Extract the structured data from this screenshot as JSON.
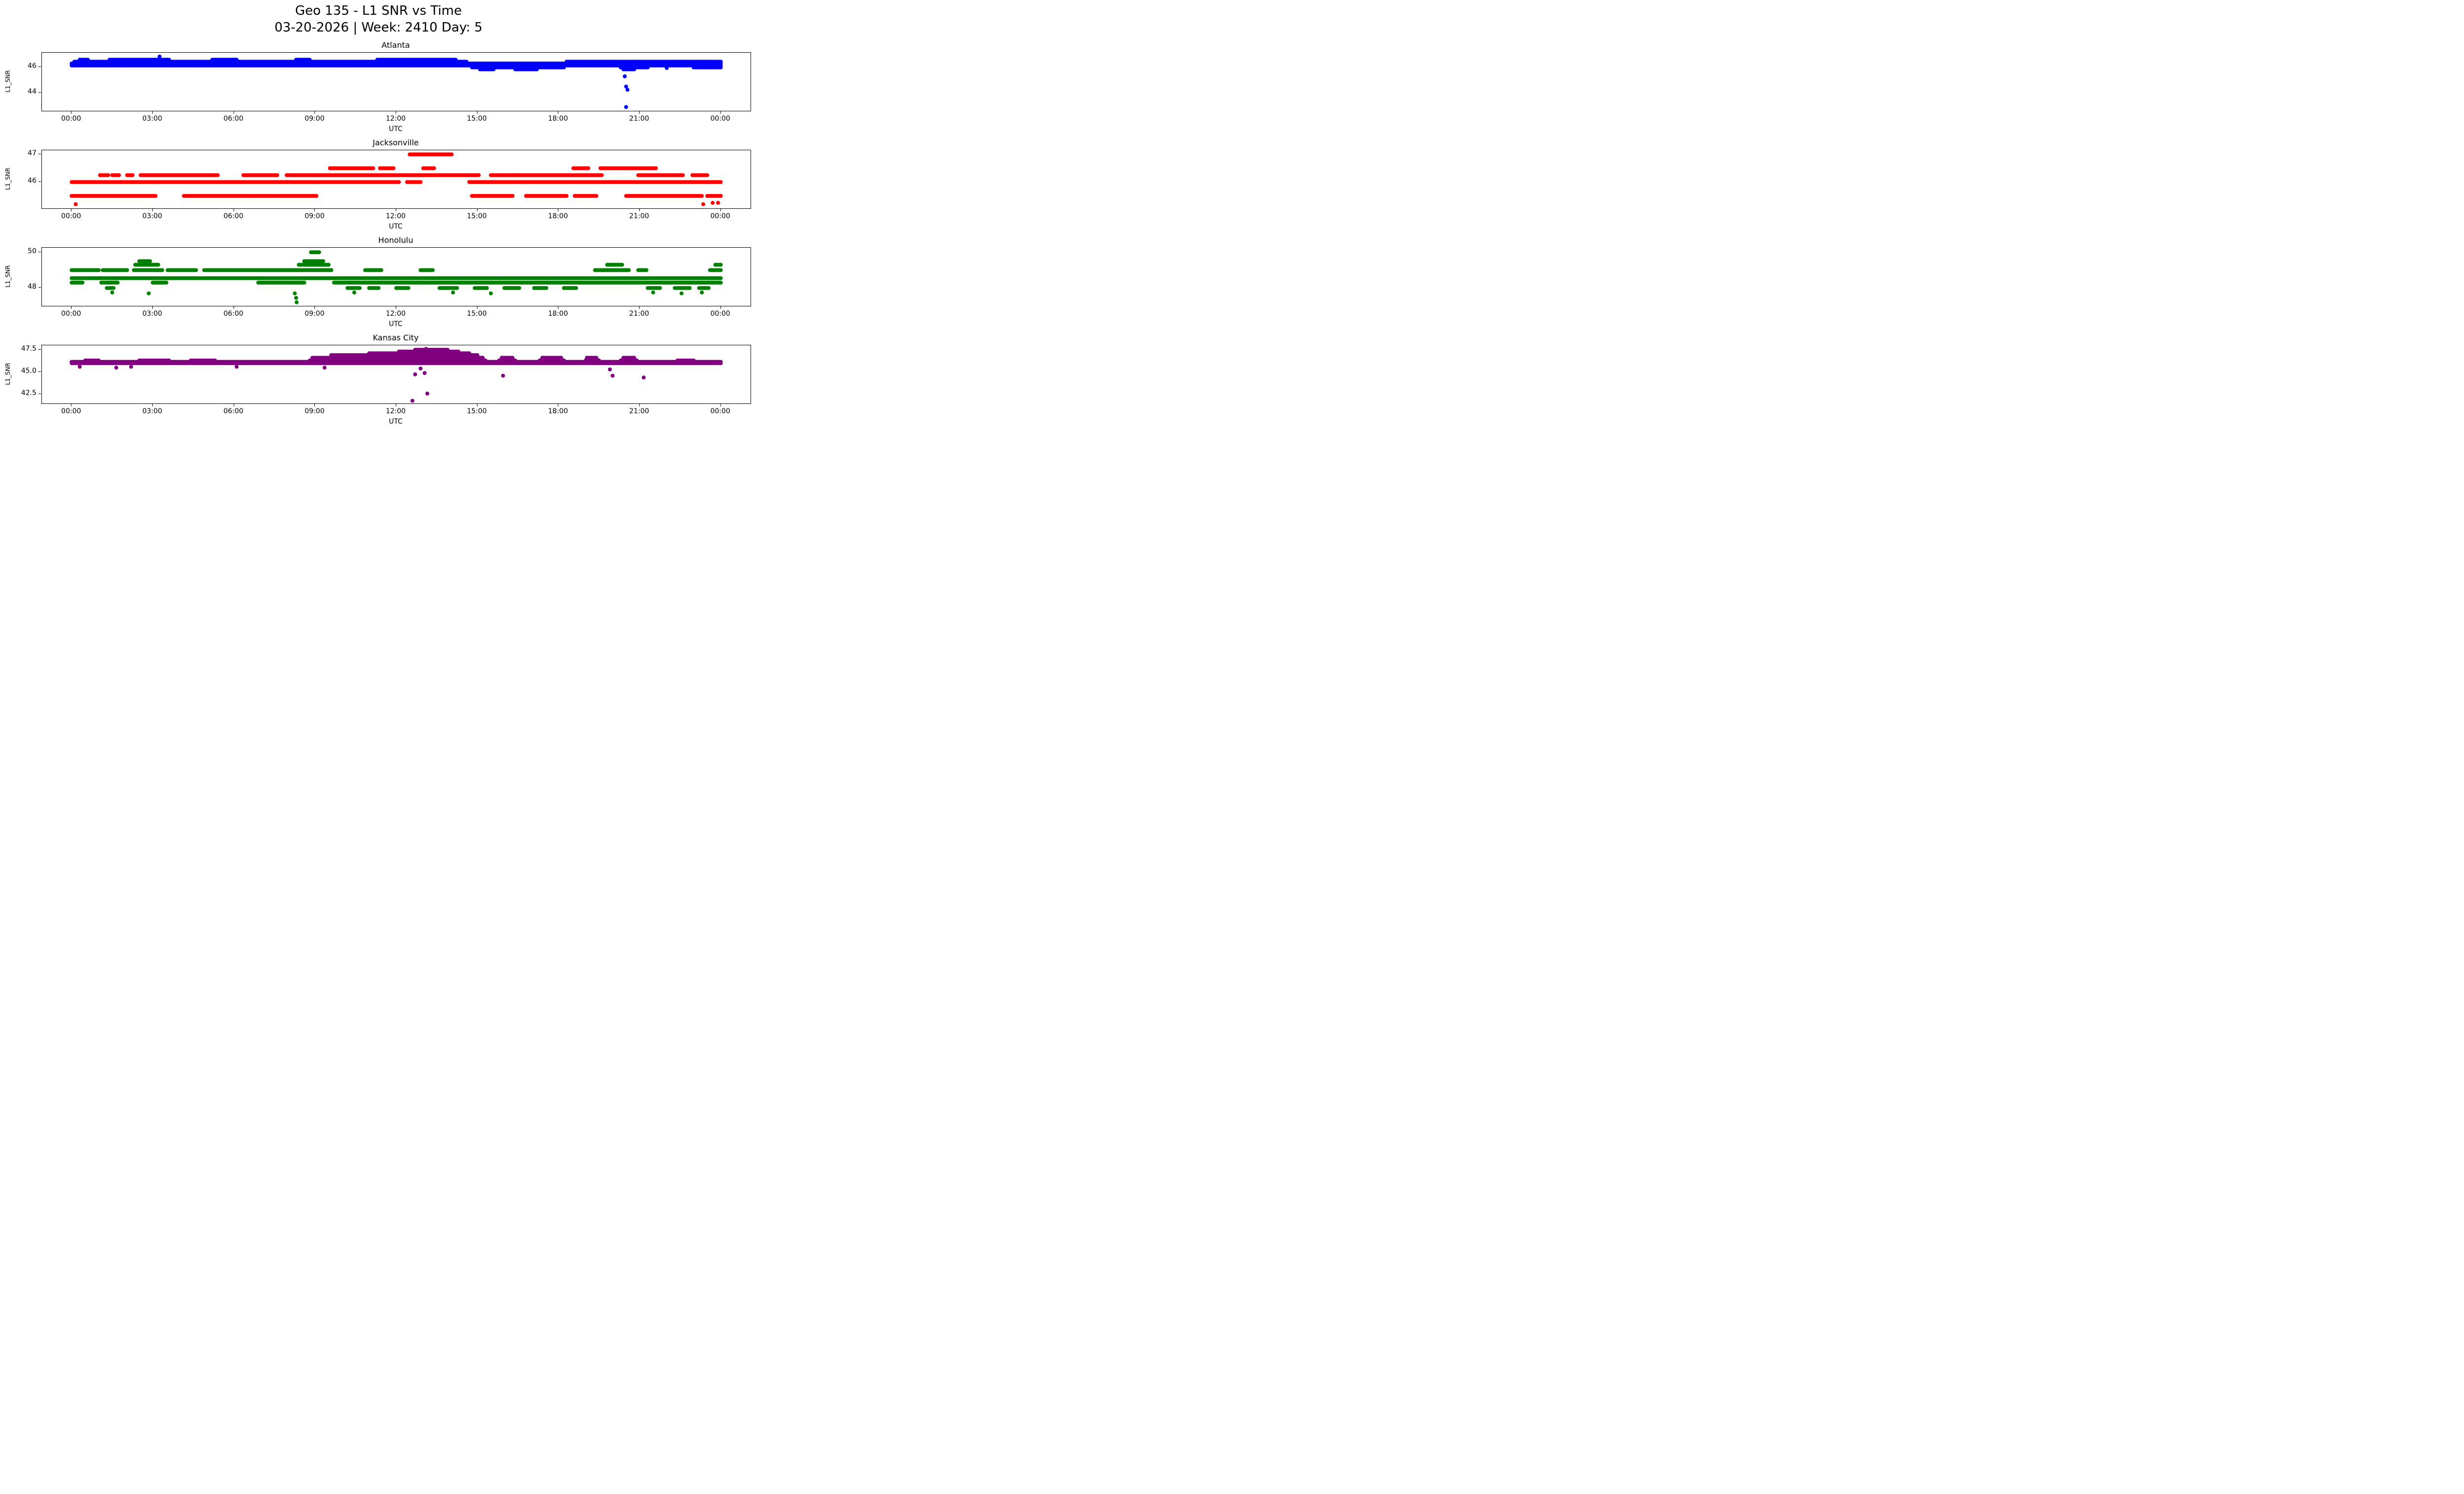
{
  "figure": {
    "title_line1": "Geo 135 - L1 SNR vs Time",
    "title_line2": "03-20-2026 | Week: 2410 Day: 5"
  },
  "chart_data": [
    {
      "type": "scatter",
      "title": "Atlanta",
      "color": "#0000ff",
      "xlabel": "UTC",
      "ylabel": "L1_SNR",
      "xlim": [
        -1.1,
        25.1
      ],
      "ylim": [
        42.6,
        47.15
      ],
      "xticks": [
        0,
        3,
        6,
        9,
        12,
        15,
        18,
        21,
        24
      ],
      "xtick_labels": [
        "00:00",
        "03:00",
        "06:00",
        "09:00",
        "12:00",
        "15:00",
        "18:00",
        "21:00",
        "00:00"
      ],
      "yticks": [
        44,
        46
      ],
      "ytick_labels": [
        "44",
        "46"
      ],
      "sample_step_hours": 0.05,
      "marker_radius": 4,
      "bands": [
        {
          "y": 46.15,
          "intervals": [
            [
              0,
              24
            ]
          ]
        },
        {
          "y": 46.3,
          "intervals": [
            [
              0,
              24
            ]
          ]
        },
        {
          "y": 46.45,
          "intervals": [
            [
              0.1,
              14.6
            ],
            [
              18.3,
              24
            ]
          ]
        },
        {
          "y": 46.6,
          "intervals": [
            [
              0.3,
              0.6
            ],
            [
              1.4,
              3.6
            ],
            [
              5.2,
              6.1
            ],
            [
              8.3,
              8.8
            ],
            [
              11.3,
              14.2
            ]
          ]
        },
        {
          "y": 46.0,
          "intervals": [
            [
              14.8,
              18.2
            ],
            [
              20.3,
              21.3
            ],
            [
              23.0,
              24
            ]
          ]
        },
        {
          "y": 45.85,
          "intervals": [
            [
              15.1,
              15.6
            ],
            [
              16.4,
              17.2
            ],
            [
              20.4,
              20.8
            ]
          ]
        }
      ],
      "outliers": [
        [
          3.25,
          46.85
        ],
        [
          20.45,
          45.3
        ],
        [
          20.5,
          44.5
        ],
        [
          20.55,
          44.25
        ],
        [
          20.5,
          42.9
        ],
        [
          22.0,
          45.95
        ],
        [
          23.5,
          46.0
        ]
      ]
    },
    {
      "type": "scatter",
      "title": "Jacksonville",
      "color": "#ff0000",
      "xlabel": "UTC",
      "ylabel": "L1_SNR",
      "xlim": [
        -1.1,
        25.1
      ],
      "ylim": [
        45.05,
        47.15
      ],
      "xticks": [
        0,
        3,
        6,
        9,
        12,
        15,
        18,
        21,
        24
      ],
      "xtick_labels": [
        "00:00",
        "03:00",
        "06:00",
        "09:00",
        "12:00",
        "15:00",
        "18:00",
        "21:00",
        "00:00"
      ],
      "yticks": [
        46,
        47
      ],
      "ytick_labels": [
        "46",
        "47"
      ],
      "sample_step_hours": 0.05,
      "marker_radius": 4,
      "bands": [
        {
          "y": 46.0,
          "intervals": [
            [
              0,
              12.1
            ],
            [
              12.4,
              12.9
            ],
            [
              14.7,
              24
            ]
          ]
        },
        {
          "y": 45.5,
          "intervals": [
            [
              0,
              3.1
            ],
            [
              4.15,
              9.05
            ],
            [
              14.8,
              16.3
            ],
            [
              16.8,
              18.3
            ],
            [
              18.6,
              19.4
            ],
            [
              20.5,
              23.3
            ],
            [
              23.5,
              24
            ]
          ]
        },
        {
          "y": 46.25,
          "intervals": [
            [
              1.05,
              1.35
            ],
            [
              1.5,
              1.75
            ],
            [
              2.05,
              2.25
            ],
            [
              2.55,
              5.4
            ],
            [
              6.35,
              7.6
            ],
            [
              7.95,
              15.05
            ],
            [
              15.5,
              19.6
            ],
            [
              20.95,
              22.6
            ],
            [
              22.95,
              23.5
            ]
          ]
        },
        {
          "y": 46.5,
          "intervals": [
            [
              9.55,
              11.15
            ],
            [
              11.4,
              11.9
            ],
            [
              13.0,
              13.4
            ],
            [
              18.55,
              19.1
            ],
            [
              19.55,
              21.6
            ]
          ]
        },
        {
          "y": 47.0,
          "intervals": [
            [
              12.5,
              14.05
            ]
          ]
        }
      ],
      "outliers": [
        [
          0.15,
          45.2
        ],
        [
          23.35,
          45.2
        ],
        [
          23.7,
          45.25
        ],
        [
          23.9,
          45.25
        ],
        [
          16.5,
          46.25
        ]
      ]
    },
    {
      "type": "scatter",
      "title": "Honolulu",
      "color": "#008000",
      "xlabel": "UTC",
      "ylabel": "L1_SNR",
      "xlim": [
        -1.1,
        25.1
      ],
      "ylim": [
        47.0,
        50.25
      ],
      "xticks": [
        0,
        3,
        6,
        9,
        12,
        15,
        18,
        21,
        24
      ],
      "xtick_labels": [
        "00:00",
        "03:00",
        "06:00",
        "09:00",
        "12:00",
        "15:00",
        "18:00",
        "21:00",
        "00:00"
      ],
      "yticks": [
        48,
        50
      ],
      "ytick_labels": [
        "48",
        "50"
      ],
      "sample_step_hours": 0.05,
      "marker_radius": 4,
      "bands": [
        {
          "y": 48.55,
          "intervals": [
            [
              0,
              24
            ]
          ]
        },
        {
          "y": 48.3,
          "intervals": [
            [
              0,
              0.4
            ],
            [
              1.1,
              1.7
            ],
            [
              3.0,
              3.5
            ],
            [
              6.9,
              8.6
            ],
            [
              9.7,
              24
            ]
          ]
        },
        {
          "y": 49.0,
          "intervals": [
            [
              0,
              1.0
            ],
            [
              1.15,
              2.05
            ],
            [
              2.3,
              3.35
            ],
            [
              3.55,
              4.6
            ],
            [
              4.9,
              9.6
            ],
            [
              10.85,
              11.45
            ],
            [
              12.9,
              13.35
            ],
            [
              19.35,
              20.6
            ],
            [
              20.95,
              21.25
            ],
            [
              23.6,
              24
            ]
          ]
        },
        {
          "y": 49.3,
          "intervals": [
            [
              2.35,
              3.2
            ],
            [
              8.4,
              9.5
            ],
            [
              19.8,
              20.35
            ],
            [
              23.8,
              24
            ]
          ]
        },
        {
          "y": 49.5,
          "intervals": [
            [
              2.5,
              2.9
            ],
            [
              8.6,
              9.3
            ]
          ]
        },
        {
          "y": 50.0,
          "intervals": [
            [
              8.85,
              9.15
            ]
          ]
        },
        {
          "y": 48.0,
          "intervals": [
            [
              1.3,
              1.55
            ],
            [
              10.2,
              10.65
            ],
            [
              11.0,
              11.35
            ],
            [
              12.0,
              12.45
            ],
            [
              13.6,
              14.25
            ],
            [
              14.9,
              15.35
            ],
            [
              16.0,
              16.55
            ],
            [
              17.1,
              17.55
            ],
            [
              18.2,
              18.65
            ],
            [
              21.3,
              21.75
            ],
            [
              22.3,
              22.85
            ],
            [
              23.2,
              23.55
            ]
          ]
        }
      ],
      "outliers": [
        [
          1.5,
          47.75
        ],
        [
          2.85,
          47.7
        ],
        [
          8.25,
          47.7
        ],
        [
          8.3,
          47.45
        ],
        [
          8.32,
          47.2
        ],
        [
          10.45,
          47.75
        ],
        [
          14.1,
          47.75
        ],
        [
          15.5,
          47.7
        ],
        [
          21.5,
          47.75
        ],
        [
          22.55,
          47.7
        ],
        [
          23.3,
          47.75
        ]
      ]
    },
    {
      "type": "scatter",
      "title": "Kansas City",
      "color": "#800080",
      "xlabel": "UTC",
      "ylabel": "L1_SNR",
      "xlim": [
        -1.1,
        25.1
      ],
      "ylim": [
        41.5,
        48.0
      ],
      "xticks": [
        0,
        3,
        6,
        9,
        12,
        15,
        18,
        21,
        24
      ],
      "xtick_labels": [
        "00:00",
        "03:00",
        "06:00",
        "09:00",
        "12:00",
        "15:00",
        "18:00",
        "21:00",
        "00:00"
      ],
      "yticks": [
        42.5,
        45.0,
        47.5
      ],
      "ytick_labels": [
        "42.5",
        "45.0",
        "47.5"
      ],
      "sample_step_hours": 0.05,
      "marker_radius": 4,
      "bands": [
        {
          "y": 46.0,
          "intervals": [
            [
              0,
              24
            ]
          ]
        },
        {
          "y": 46.15,
          "intervals": [
            [
              0,
              24
            ]
          ]
        },
        {
          "y": 46.3,
          "intervals": [
            [
              0.5,
              1.0
            ],
            [
              2.5,
              3.6
            ],
            [
              4.4,
              5.3
            ],
            [
              8.8,
              15.3
            ],
            [
              15.8,
              16.4
            ],
            [
              17.3,
              18.2
            ],
            [
              19.0,
              19.5
            ],
            [
              20.3,
              20.9
            ],
            [
              22.4,
              23.0
            ]
          ]
        },
        {
          "y": 46.6,
          "intervals": [
            [
              8.9,
              15.2
            ],
            [
              15.9,
              16.3
            ],
            [
              17.4,
              18.1
            ],
            [
              19.05,
              19.4
            ],
            [
              20.4,
              20.8
            ]
          ]
        },
        {
          "y": 46.9,
          "intervals": [
            [
              9.6,
              15.0
            ]
          ]
        },
        {
          "y": 47.1,
          "intervals": [
            [
              11.0,
              14.7
            ]
          ]
        },
        {
          "y": 47.3,
          "intervals": [
            [
              12.1,
              14.3
            ]
          ]
        },
        {
          "y": 47.5,
          "intervals": [
            [
              12.7,
              13.9
            ]
          ]
        }
      ],
      "outliers": [
        [
          13.1,
          47.6
        ],
        [
          12.6,
          41.8
        ],
        [
          13.15,
          42.6
        ],
        [
          12.7,
          44.75
        ],
        [
          13.05,
          44.9
        ],
        [
          12.9,
          45.4
        ],
        [
          15.95,
          44.6
        ],
        [
          20.0,
          44.6
        ],
        [
          21.15,
          44.4
        ],
        [
          0.3,
          45.6
        ],
        [
          1.65,
          45.5
        ],
        [
          2.2,
          45.6
        ],
        [
          6.1,
          45.6
        ],
        [
          9.35,
          45.5
        ],
        [
          19.9,
          45.3
        ]
      ]
    }
  ]
}
